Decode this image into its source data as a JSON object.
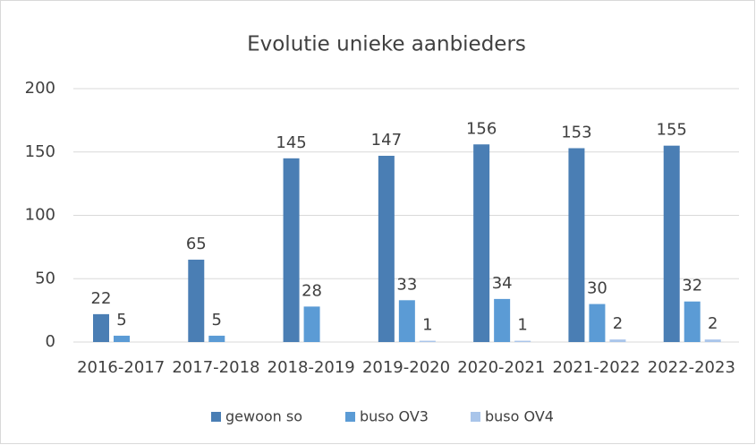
{
  "chart_data": {
    "type": "bar",
    "title": "Evolutie unieke aanbieders",
    "categories": [
      "2016-2017",
      "2017-2018",
      "2018-2019",
      "2019-2020",
      "2020-2021",
      "2021-2022",
      "2022-2023"
    ],
    "series": [
      {
        "name": "gewoon so",
        "color": "#4a7eb4",
        "values": [
          22,
          65,
          145,
          147,
          156,
          153,
          155
        ]
      },
      {
        "name": "buso OV3",
        "color": "#5b9bd5",
        "values": [
          5,
          5,
          28,
          33,
          34,
          30,
          32
        ]
      },
      {
        "name": "buso OV4",
        "color": "#a9c5ea",
        "values": [
          null,
          null,
          null,
          1,
          1,
          2,
          2
        ]
      }
    ],
    "ylim": [
      0,
      200
    ],
    "yticks": [
      0,
      50,
      100,
      150,
      200
    ],
    "grid": true,
    "legend": "bottom"
  }
}
